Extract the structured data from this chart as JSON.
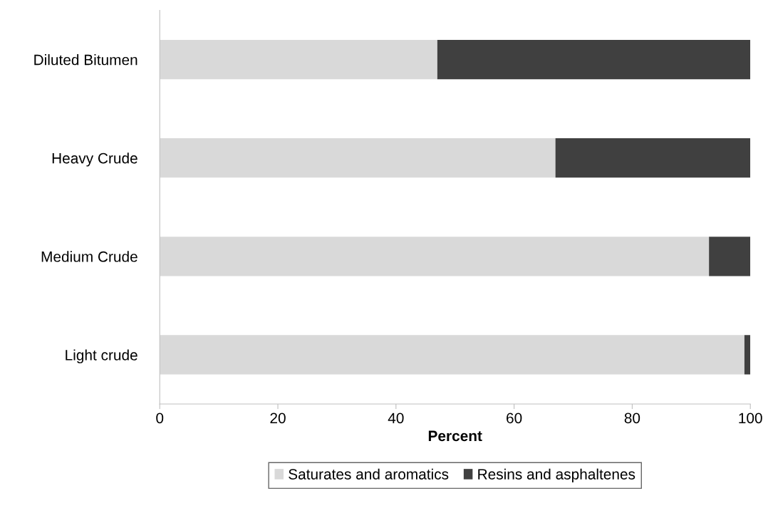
{
  "chart_data": {
    "type": "bar",
    "orientation": "horizontal",
    "stacked": true,
    "xlabel": "Percent",
    "categories": [
      "Diluted Bitumen",
      "Heavy Crude",
      "Medium Crude",
      "Light crude"
    ],
    "series": [
      {
        "name": "Saturates and aromatics",
        "color": "#d9d9d9",
        "values": [
          47,
          67,
          93,
          99
        ]
      },
      {
        "name": "Resins and asphaltenes",
        "color": "#404040",
        "values": [
          53,
          33,
          7,
          1
        ]
      }
    ],
    "xlim": [
      0,
      100
    ],
    "xticks": [
      0,
      20,
      40,
      60,
      80,
      100
    ],
    "grid": false,
    "legend": "bottom"
  }
}
